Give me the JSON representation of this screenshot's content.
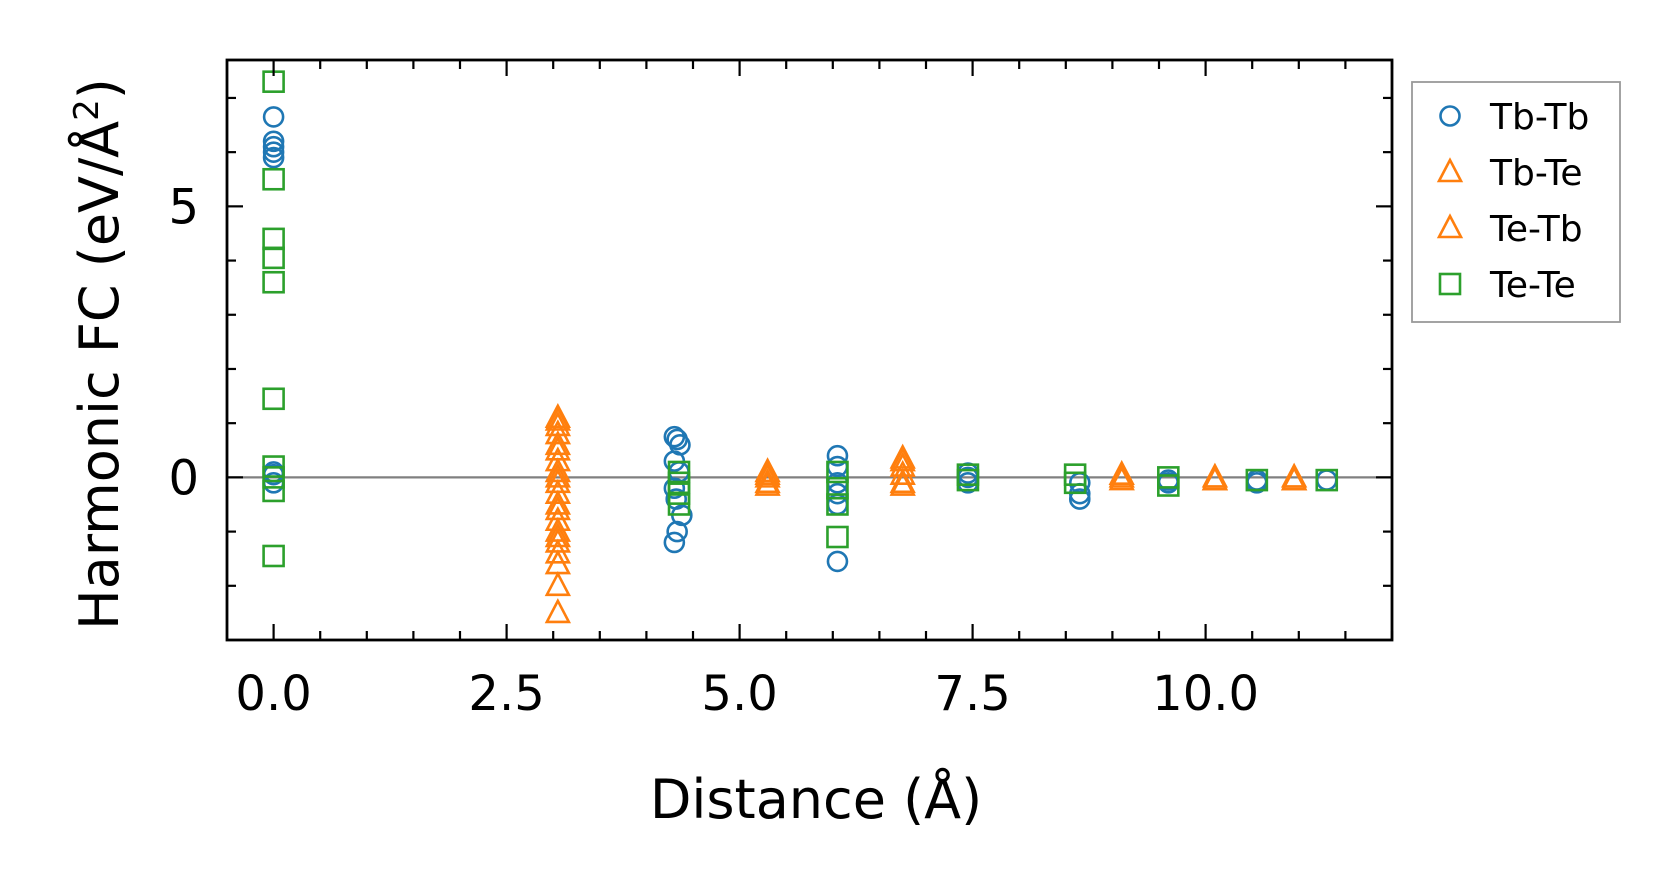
{
  "chart_data": {
    "type": "scatter",
    "xlabel": "Distance (Å)",
    "ylabel_prefix": "Harmonic FC (eV/Å",
    "ylabel_sup": "2",
    "ylabel_suffix": ")",
    "xlim": [
      -0.5,
      12.0
    ],
    "ylim": [
      -3.0,
      7.7
    ],
    "x_ticks": [
      0.0,
      2.5,
      5.0,
      7.5,
      10.0
    ],
    "x_tick_labels": [
      "0.0",
      "2.5",
      "5.0",
      "7.5",
      "10.0"
    ],
    "y_ticks": [
      0,
      5
    ],
    "y_tick_labels": [
      "0",
      "5"
    ],
    "zero_line": true,
    "legend_position": "outside-right",
    "series": [
      {
        "name": "Tb-Tb",
        "marker": "circle",
        "color": "#1f77b4",
        "points": [
          [
            0,
            6.65
          ],
          [
            0,
            6.2
          ],
          [
            0,
            6.1
          ],
          [
            0,
            6.0
          ],
          [
            0,
            5.9
          ],
          [
            0,
            0.1
          ],
          [
            0,
            0.05
          ],
          [
            0,
            -0.1
          ],
          [
            4.3,
            0.75
          ],
          [
            4.33,
            0.7
          ],
          [
            4.36,
            0.6
          ],
          [
            4.3,
            0.3
          ],
          [
            4.35,
            0.1
          ],
          [
            4.3,
            -0.2
          ],
          [
            4.32,
            -0.4
          ],
          [
            4.38,
            -0.7
          ],
          [
            4.33,
            -1.0
          ],
          [
            4.3,
            -1.2
          ],
          [
            6.05,
            0.4
          ],
          [
            6.05,
            0.2
          ],
          [
            6.05,
            -0.1
          ],
          [
            6.05,
            -0.3
          ],
          [
            6.05,
            -0.5
          ],
          [
            6.05,
            -1.55
          ],
          [
            7.45,
            0.08
          ],
          [
            7.45,
            0.0
          ],
          [
            7.45,
            -0.1
          ],
          [
            8.65,
            -0.1
          ],
          [
            8.65,
            -0.3
          ],
          [
            8.65,
            -0.4
          ],
          [
            9.6,
            -0.05
          ],
          [
            9.6,
            -0.1
          ],
          [
            10.55,
            -0.05
          ],
          [
            10.55,
            -0.1
          ],
          [
            11.3,
            -0.05
          ]
        ]
      },
      {
        "name": "Tb-Te",
        "marker": "triangle",
        "color": "#ff7f0e",
        "points": [
          [
            3.05,
            1.1
          ],
          [
            3.05,
            0.95
          ],
          [
            3.05,
            0.8
          ],
          [
            3.05,
            0.5
          ],
          [
            3.05,
            0.3
          ],
          [
            3.05,
            0.1
          ],
          [
            3.05,
            -0.1
          ],
          [
            3.05,
            -0.3
          ],
          [
            3.05,
            -0.6
          ],
          [
            3.05,
            -0.8
          ],
          [
            3.05,
            -1.0
          ],
          [
            3.05,
            -1.2
          ],
          [
            3.05,
            -1.4
          ],
          [
            3.05,
            -1.6
          ],
          [
            3.05,
            -2.0
          ],
          [
            3.05,
            -2.5
          ],
          [
            5.3,
            0.1
          ],
          [
            5.3,
            0.0
          ],
          [
            5.3,
            -0.15
          ],
          [
            6.75,
            0.35
          ],
          [
            6.75,
            0.2
          ],
          [
            6.75,
            0.05
          ],
          [
            6.75,
            -0.15
          ],
          [
            9.1,
            0.05
          ],
          [
            9.1,
            -0.05
          ],
          [
            10.1,
            0.0
          ],
          [
            10.1,
            -0.05
          ],
          [
            10.95,
            0.0
          ],
          [
            10.95,
            -0.05
          ]
        ]
      },
      {
        "name": "Te-Tb",
        "marker": "triangle",
        "color": "#ff7f0e",
        "points": [
          [
            3.05,
            1.05
          ],
          [
            3.05,
            0.6
          ],
          [
            3.05,
            0.0
          ],
          [
            3.05,
            -0.5
          ],
          [
            3.05,
            -1.1
          ],
          [
            5.3,
            0.05
          ],
          [
            5.3,
            -0.1
          ],
          [
            6.75,
            0.3
          ],
          [
            6.75,
            -0.1
          ],
          [
            9.1,
            0.0
          ],
          [
            10.1,
            -0.05
          ],
          [
            10.95,
            -0.05
          ]
        ]
      },
      {
        "name": "Te-Te",
        "marker": "square",
        "color": "#2ca02c",
        "points": [
          [
            0,
            7.3
          ],
          [
            0,
            5.5
          ],
          [
            0,
            4.4
          ],
          [
            0,
            4.05
          ],
          [
            0,
            3.6
          ],
          [
            0,
            1.45
          ],
          [
            0,
            0.2
          ],
          [
            0,
            0.0
          ],
          [
            0,
            -0.25
          ],
          [
            0,
            -1.45
          ],
          [
            4.35,
            0.1
          ],
          [
            4.35,
            -0.1
          ],
          [
            4.35,
            -0.3
          ],
          [
            4.35,
            -0.5
          ],
          [
            6.05,
            0.1
          ],
          [
            6.05,
            -0.2
          ],
          [
            6.05,
            -0.5
          ],
          [
            6.05,
            -1.1
          ],
          [
            7.45,
            0.05
          ],
          [
            7.45,
            -0.05
          ],
          [
            8.6,
            0.05
          ],
          [
            8.6,
            -0.1
          ],
          [
            9.6,
            0.0
          ],
          [
            9.6,
            -0.15
          ],
          [
            10.55,
            -0.05
          ],
          [
            11.3,
            -0.05
          ]
        ]
      }
    ]
  }
}
